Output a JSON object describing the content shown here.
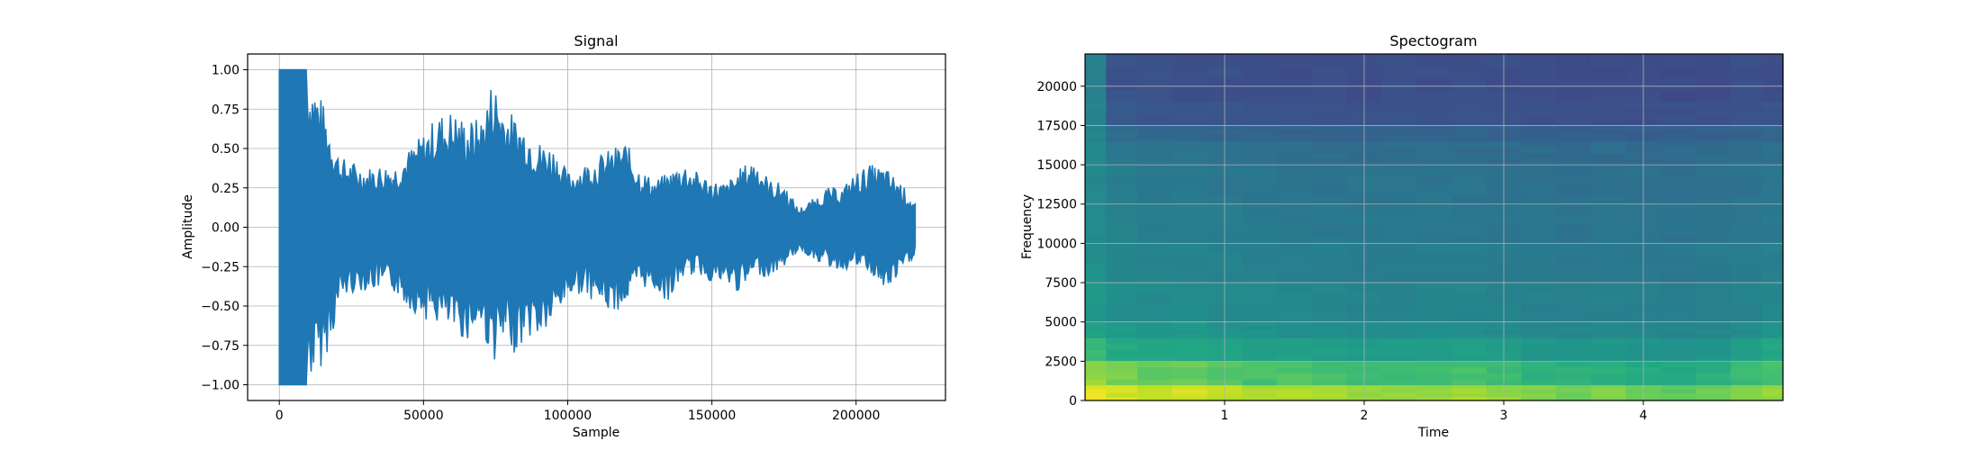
{
  "chart_data": [
    {
      "type": "line",
      "title": "Signal",
      "xlabel": "Sample",
      "ylabel": "Amplitude",
      "xlim": [
        -11000,
        231000
      ],
      "ylim": [
        -1.1,
        1.1
      ],
      "xticks": [
        0,
        50000,
        100000,
        150000,
        200000
      ],
      "xtick_labels": [
        "0",
        "50000",
        "100000",
        "150000",
        "200000"
      ],
      "yticks": [
        -1.0,
        -0.75,
        -0.5,
        -0.25,
        0.0,
        0.25,
        0.5,
        0.75,
        1.0
      ],
      "ytick_labels": [
        "−1.00",
        "−0.75",
        "−0.50",
        "−0.25",
        "0.00",
        "0.25",
        "0.50",
        "0.75",
        "1.00"
      ],
      "grid": true,
      "color": "#1f77b4",
      "series": [
        {
          "x": [
            0,
            5000,
            9500,
            12000,
            15000,
            18000,
            21000,
            25000,
            30000,
            35000,
            40000,
            45000,
            50000,
            55000,
            60000,
            65000,
            70000,
            74000,
            78000,
            82000,
            86000,
            90000,
            95000,
            100000,
            105000,
            110000,
            115000,
            120000,
            125000,
            130000,
            135000,
            140000,
            145000,
            150000,
            155000,
            160000,
            165000,
            170000,
            175000,
            180000,
            185000,
            190000,
            195000,
            200000,
            205000,
            210000,
            215000,
            220500
          ],
          "upper": [
            1.0,
            1.0,
            1.0,
            0.95,
            0.8,
            0.62,
            0.45,
            0.42,
            0.38,
            0.4,
            0.4,
            0.5,
            0.6,
            0.72,
            0.75,
            0.68,
            0.7,
            0.96,
            0.78,
            0.7,
            0.65,
            0.55,
            0.52,
            0.35,
            0.4,
            0.45,
            0.5,
            0.55,
            0.38,
            0.3,
            0.35,
            0.42,
            0.35,
            0.3,
            0.28,
            0.38,
            0.45,
            0.3,
            0.28,
            0.12,
            0.18,
            0.25,
            0.25,
            0.35,
            0.4,
            0.38,
            0.3,
            0.15
          ],
          "lower": [
            -1.0,
            -1.0,
            -1.0,
            -0.95,
            -0.88,
            -0.72,
            -0.48,
            -0.42,
            -0.4,
            -0.4,
            -0.42,
            -0.52,
            -0.58,
            -0.62,
            -0.68,
            -0.72,
            -0.65,
            -0.86,
            -0.78,
            -0.8,
            -0.7,
            -0.72,
            -0.62,
            -0.45,
            -0.42,
            -0.48,
            -0.55,
            -0.5,
            -0.38,
            -0.4,
            -0.48,
            -0.32,
            -0.3,
            -0.35,
            -0.38,
            -0.42,
            -0.3,
            -0.32,
            -0.25,
            -0.15,
            -0.2,
            -0.25,
            -0.28,
            -0.25,
            -0.3,
            -0.42,
            -0.32,
            -0.18
          ]
        }
      ]
    },
    {
      "type": "heatmap",
      "title": "Spectogram",
      "xlabel": "Time",
      "ylabel": "Frequency",
      "xlim": [
        0,
        5.0
      ],
      "ylim": [
        0,
        22050
      ],
      "xticks": [
        1,
        2,
        3,
        4
      ],
      "xtick_labels": [
        "1",
        "2",
        "3",
        "4"
      ],
      "yticks": [
        0,
        2500,
        5000,
        7500,
        10000,
        12500,
        15000,
        17500,
        20000
      ],
      "ytick_labels": [
        "0",
        "2500",
        "5000",
        "7500",
        "10000",
        "12500",
        "15000",
        "17500",
        "20000"
      ],
      "grid": true,
      "colormap": "viridis",
      "time_bins": [
        0.05,
        0.25,
        0.5,
        0.75,
        1.0,
        1.25,
        1.5,
        1.75,
        2.0,
        2.25,
        2.5,
        2.75,
        3.0,
        3.25,
        3.5,
        3.75,
        4.0,
        4.25,
        4.5,
        4.75,
        4.95
      ],
      "freq_bins": [
        0,
        1000,
        2500,
        4000,
        5000,
        7500,
        10000,
        12500,
        15000,
        16500,
        17500,
        19000,
        22050
      ],
      "intensity": [
        [
          0.98,
          0.96,
          0.95,
          0.96,
          0.94,
          0.92,
          0.93,
          0.92,
          0.9,
          0.9,
          0.91,
          0.92,
          0.9,
          0.88,
          0.87,
          0.88,
          0.86,
          0.85,
          0.87,
          0.88,
          0.9
        ],
        [
          0.9,
          0.88,
          0.85,
          0.86,
          0.84,
          0.82,
          0.83,
          0.82,
          0.8,
          0.8,
          0.81,
          0.82,
          0.8,
          0.78,
          0.77,
          0.78,
          0.76,
          0.75,
          0.77,
          0.8,
          0.82
        ],
        [
          0.8,
          0.76,
          0.74,
          0.75,
          0.72,
          0.7,
          0.71,
          0.7,
          0.68,
          0.68,
          0.69,
          0.7,
          0.68,
          0.66,
          0.65,
          0.66,
          0.64,
          0.63,
          0.65,
          0.7,
          0.74
        ],
        [
          0.72,
          0.68,
          0.66,
          0.67,
          0.64,
          0.63,
          0.63,
          0.62,
          0.61,
          0.61,
          0.62,
          0.62,
          0.6,
          0.59,
          0.58,
          0.59,
          0.58,
          0.57,
          0.58,
          0.6,
          0.64
        ],
        [
          0.66,
          0.62,
          0.6,
          0.6,
          0.59,
          0.58,
          0.58,
          0.57,
          0.56,
          0.56,
          0.57,
          0.57,
          0.56,
          0.55,
          0.54,
          0.55,
          0.54,
          0.53,
          0.54,
          0.56,
          0.58
        ],
        [
          0.62,
          0.58,
          0.56,
          0.56,
          0.55,
          0.54,
          0.54,
          0.53,
          0.52,
          0.52,
          0.53,
          0.53,
          0.52,
          0.51,
          0.5,
          0.51,
          0.5,
          0.5,
          0.51,
          0.52,
          0.54
        ],
        [
          0.6,
          0.55,
          0.53,
          0.53,
          0.52,
          0.51,
          0.51,
          0.5,
          0.5,
          0.5,
          0.5,
          0.5,
          0.49,
          0.49,
          0.48,
          0.49,
          0.48,
          0.48,
          0.49,
          0.5,
          0.51
        ],
        [
          0.58,
          0.53,
          0.51,
          0.51,
          0.5,
          0.49,
          0.49,
          0.48,
          0.48,
          0.48,
          0.48,
          0.48,
          0.47,
          0.47,
          0.46,
          0.47,
          0.46,
          0.46,
          0.47,
          0.48,
          0.49
        ],
        [
          0.58,
          0.5,
          0.48,
          0.48,
          0.47,
          0.46,
          0.46,
          0.45,
          0.45,
          0.45,
          0.45,
          0.45,
          0.44,
          0.44,
          0.43,
          0.44,
          0.43,
          0.43,
          0.44,
          0.45,
          0.46
        ],
        [
          0.57,
          0.44,
          0.42,
          0.42,
          0.41,
          0.41,
          0.4,
          0.4,
          0.4,
          0.4,
          0.4,
          0.4,
          0.39,
          0.39,
          0.38,
          0.39,
          0.38,
          0.38,
          0.39,
          0.4,
          0.41
        ],
        [
          0.56,
          0.36,
          0.34,
          0.34,
          0.33,
          0.33,
          0.33,
          0.32,
          0.32,
          0.32,
          0.32,
          0.32,
          0.32,
          0.31,
          0.31,
          0.31,
          0.31,
          0.31,
          0.31,
          0.32,
          0.33
        ],
        [
          0.55,
          0.32,
          0.31,
          0.31,
          0.31,
          0.3,
          0.3,
          0.3,
          0.3,
          0.3,
          0.3,
          0.3,
          0.3,
          0.3,
          0.29,
          0.29,
          0.29,
          0.29,
          0.29,
          0.3,
          0.3
        ]
      ]
    }
  ]
}
